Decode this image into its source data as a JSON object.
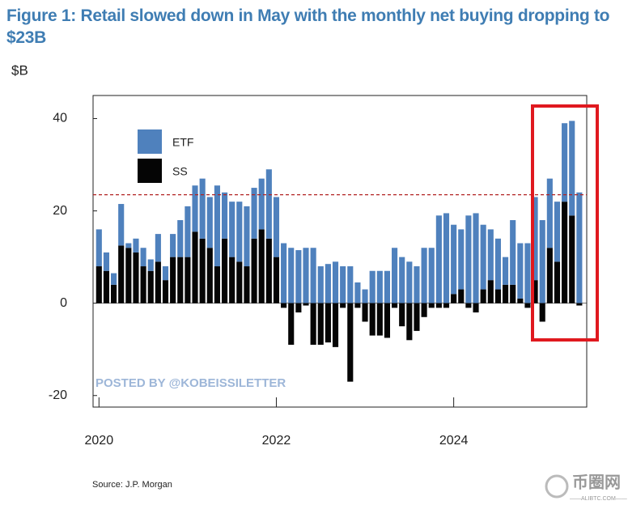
{
  "chart_data": {
    "type": "bar",
    "stacked": true,
    "title": "Figure 1: Retail slowed down in May with the monthly net buying dropping to $23B",
    "y_label": "$B",
    "source": "Source: J.P. Morgan",
    "watermark": "POSTED BY @KOBEISSILETTER",
    "corner_logo": "币圈网",
    "corner_logo_sub": "——ALIBTC.COM——",
    "x": [
      0,
      1,
      2,
      3,
      4,
      5,
      6,
      7,
      8,
      9,
      10,
      11,
      12,
      13,
      14,
      15,
      16,
      17,
      18,
      19,
      20,
      21,
      22,
      23,
      24,
      25,
      26,
      27,
      28,
      29,
      30,
      31,
      32,
      33,
      34,
      35,
      36,
      37,
      38,
      39,
      40,
      41,
      42,
      43,
      44,
      45,
      46,
      47,
      48,
      49,
      50,
      51,
      52,
      53,
      54,
      55,
      56,
      57,
      58,
      59,
      60,
      61,
      62,
      63,
      64,
      65
    ],
    "series": [
      {
        "name": "SS",
        "color": "#050505",
        "values": [
          8,
          7,
          4,
          12.5,
          12,
          11,
          8,
          7,
          9,
          5,
          10,
          10,
          10,
          15.5,
          14,
          12,
          8,
          14,
          10,
          9,
          8,
          14,
          16,
          14,
          10,
          -1,
          -9,
          -2,
          -0.5,
          -9,
          -9,
          -8.5,
          -9.5,
          -1,
          -17,
          -1,
          -4,
          -7,
          -7,
          -7.5,
          -1,
          -5,
          -8,
          -6,
          -3,
          -1,
          -1,
          -1,
          2,
          3,
          -1,
          -2,
          3,
          5,
          3,
          4,
          4,
          1,
          -1,
          5,
          -4,
          12,
          9,
          22,
          19,
          -0.5
        ]
      },
      {
        "name": "ETF",
        "color": "#4f81bd",
        "values": [
          8,
          4,
          2.5,
          9,
          1,
          3,
          4,
          2.5,
          6,
          3,
          5,
          8,
          11,
          10,
          13,
          11,
          17.5,
          10,
          12,
          13,
          13,
          11,
          11,
          15,
          13,
          13,
          12,
          11.5,
          12,
          12,
          8,
          8.5,
          9,
          8,
          8,
          4.5,
          3,
          7,
          7,
          7,
          12,
          10,
          9,
          8,
          12,
          12,
          19,
          19.5,
          15,
          13,
          19,
          19.5,
          14,
          11,
          11,
          6,
          14,
          12,
          13,
          18,
          18,
          15,
          13,
          17,
          20.5,
          24
        ]
      }
    ],
    "xlim": [
      -0.8,
      66
    ],
    "xticks": [
      {
        "value": 0,
        "label": "2020"
      },
      {
        "value": 24,
        "label": "2022"
      },
      {
        "value": 48,
        "label": "2024"
      }
    ],
    "ylim": [
      -22.5,
      45
    ],
    "yticks": [
      -20,
      0,
      20,
      40
    ],
    "reference_line": {
      "value": 23.5,
      "color": "#b22222"
    },
    "highlight_color": "#e0191f",
    "legend": "upper left"
  }
}
